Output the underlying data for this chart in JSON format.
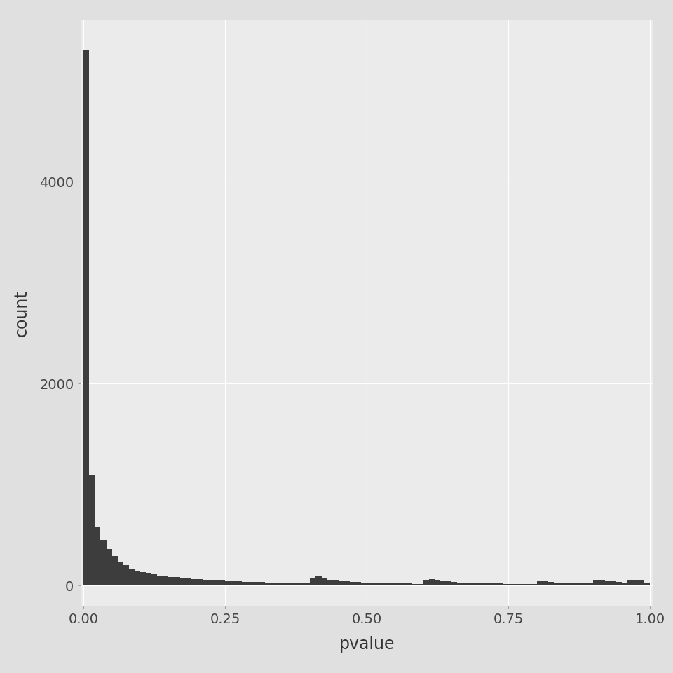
{
  "title": "",
  "xlabel": "pvalue",
  "ylabel": "count",
  "xlim": [
    -0.005,
    1.005
  ],
  "ylim": [
    -200,
    5600
  ],
  "yticks": [
    0,
    2000,
    4000
  ],
  "xticks": [
    0.0,
    0.25,
    0.5,
    0.75,
    1.0
  ],
  "xtick_labels": [
    "0.00",
    "0.25",
    "0.50",
    "0.75",
    "1.00"
  ],
  "ytick_labels": [
    "0",
    "2000",
    "4000"
  ],
  "plot_bg_color": "#EBEBEB",
  "outer_bg_color": "#E0E0E0",
  "grid_color": "#FFFFFF",
  "bar_color": "#3D3D3D",
  "bar_edge_color": "#3D3D3D",
  "n_bins": 100,
  "bin_counts": [
    5300,
    1100,
    580,
    450,
    360,
    290,
    240,
    200,
    170,
    150,
    135,
    120,
    110,
    100,
    95,
    88,
    82,
    76,
    70,
    65,
    61,
    57,
    53,
    50,
    47,
    44,
    42,
    40,
    38,
    36,
    34,
    33,
    31,
    30,
    29,
    28,
    27,
    26,
    25,
    25,
    80,
    90,
    75,
    60,
    50,
    45,
    40,
    38,
    35,
    30,
    28,
    26,
    25,
    24,
    22,
    21,
    20,
    19,
    18,
    17,
    55,
    65,
    50,
    45,
    40,
    35,
    30,
    28,
    26,
    24,
    22,
    21,
    20,
    19,
    18,
    17,
    16,
    15,
    14,
    13,
    40,
    45,
    35,
    30,
    28,
    26,
    25,
    24,
    22,
    20,
    55,
    50,
    45,
    40,
    35,
    30,
    60,
    55,
    50,
    30
  ]
}
